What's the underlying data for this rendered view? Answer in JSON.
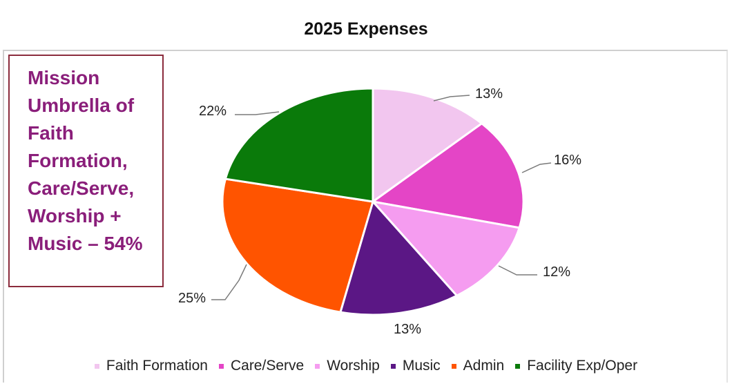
{
  "chart_data": {
    "type": "pie",
    "title": "2025 Expenses",
    "start_angle_deg": 0,
    "direction": "clockwise",
    "legend_position": "bottom",
    "slices": [
      {
        "name": "Faith Formation",
        "value": 13,
        "label": "13%",
        "color": "#f2c6ef"
      },
      {
        "name": "Care/Serve",
        "value": 16,
        "label": "16%",
        "color": "#e445c6"
      },
      {
        "name": "Worship",
        "value": 12,
        "label": "12%",
        "color": "#f59cf0"
      },
      {
        "name": "Music",
        "value": 13,
        "label": "13%",
        "color": "#5b1785"
      },
      {
        "name": "Admin",
        "value": 25,
        "label": "25%",
        "color": "#ff5400"
      },
      {
        "name": "Facility Exp/Oper",
        "value": 22,
        "label": "22%",
        "color": "#0a7a0a"
      }
    ]
  },
  "callout": {
    "text": "Mission\nUmbrella of\nFaith\nFormation,\nCare/Serve,\nWorship +\nMusic – 54%",
    "border_color": "#8b2b3c",
    "text_color": "#8a1e7a"
  }
}
